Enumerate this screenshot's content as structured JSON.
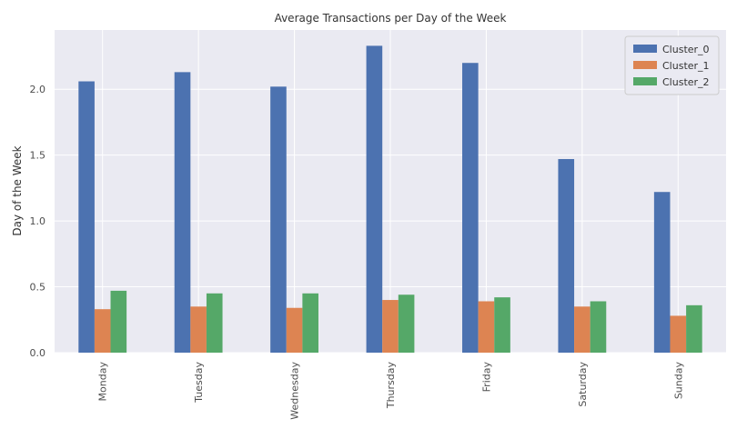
{
  "chart_data": {
    "type": "bar",
    "title": "Average Transactions per Day of the Week",
    "xlabel": "",
    "ylabel": "Day of the Week",
    "categories": [
      "Monday",
      "Tuesday",
      "Wednesday",
      "Thursday",
      "Friday",
      "Saturday",
      "Sunday"
    ],
    "series": [
      {
        "name": "Cluster_0",
        "color": "#4c72b0",
        "values": [
          2.06,
          2.13,
          2.02,
          2.33,
          2.2,
          1.47,
          1.22
        ]
      },
      {
        "name": "Cluster_1",
        "color": "#dd8452",
        "values": [
          0.33,
          0.35,
          0.34,
          0.4,
          0.39,
          0.35,
          0.28
        ]
      },
      {
        "name": "Cluster_2",
        "color": "#55a868",
        "values": [
          0.47,
          0.45,
          0.45,
          0.44,
          0.42,
          0.39,
          0.36
        ]
      }
    ],
    "ylim": [
      0,
      2.45
    ],
    "yticks": [
      0.0,
      0.5,
      1.0,
      1.5,
      2.0
    ],
    "ytick_labels": [
      "0.0",
      "0.5",
      "1.0",
      "1.5",
      "2.0"
    ],
    "grid": true,
    "legend_position": "top-right",
    "background": "#eaeaf2"
  }
}
